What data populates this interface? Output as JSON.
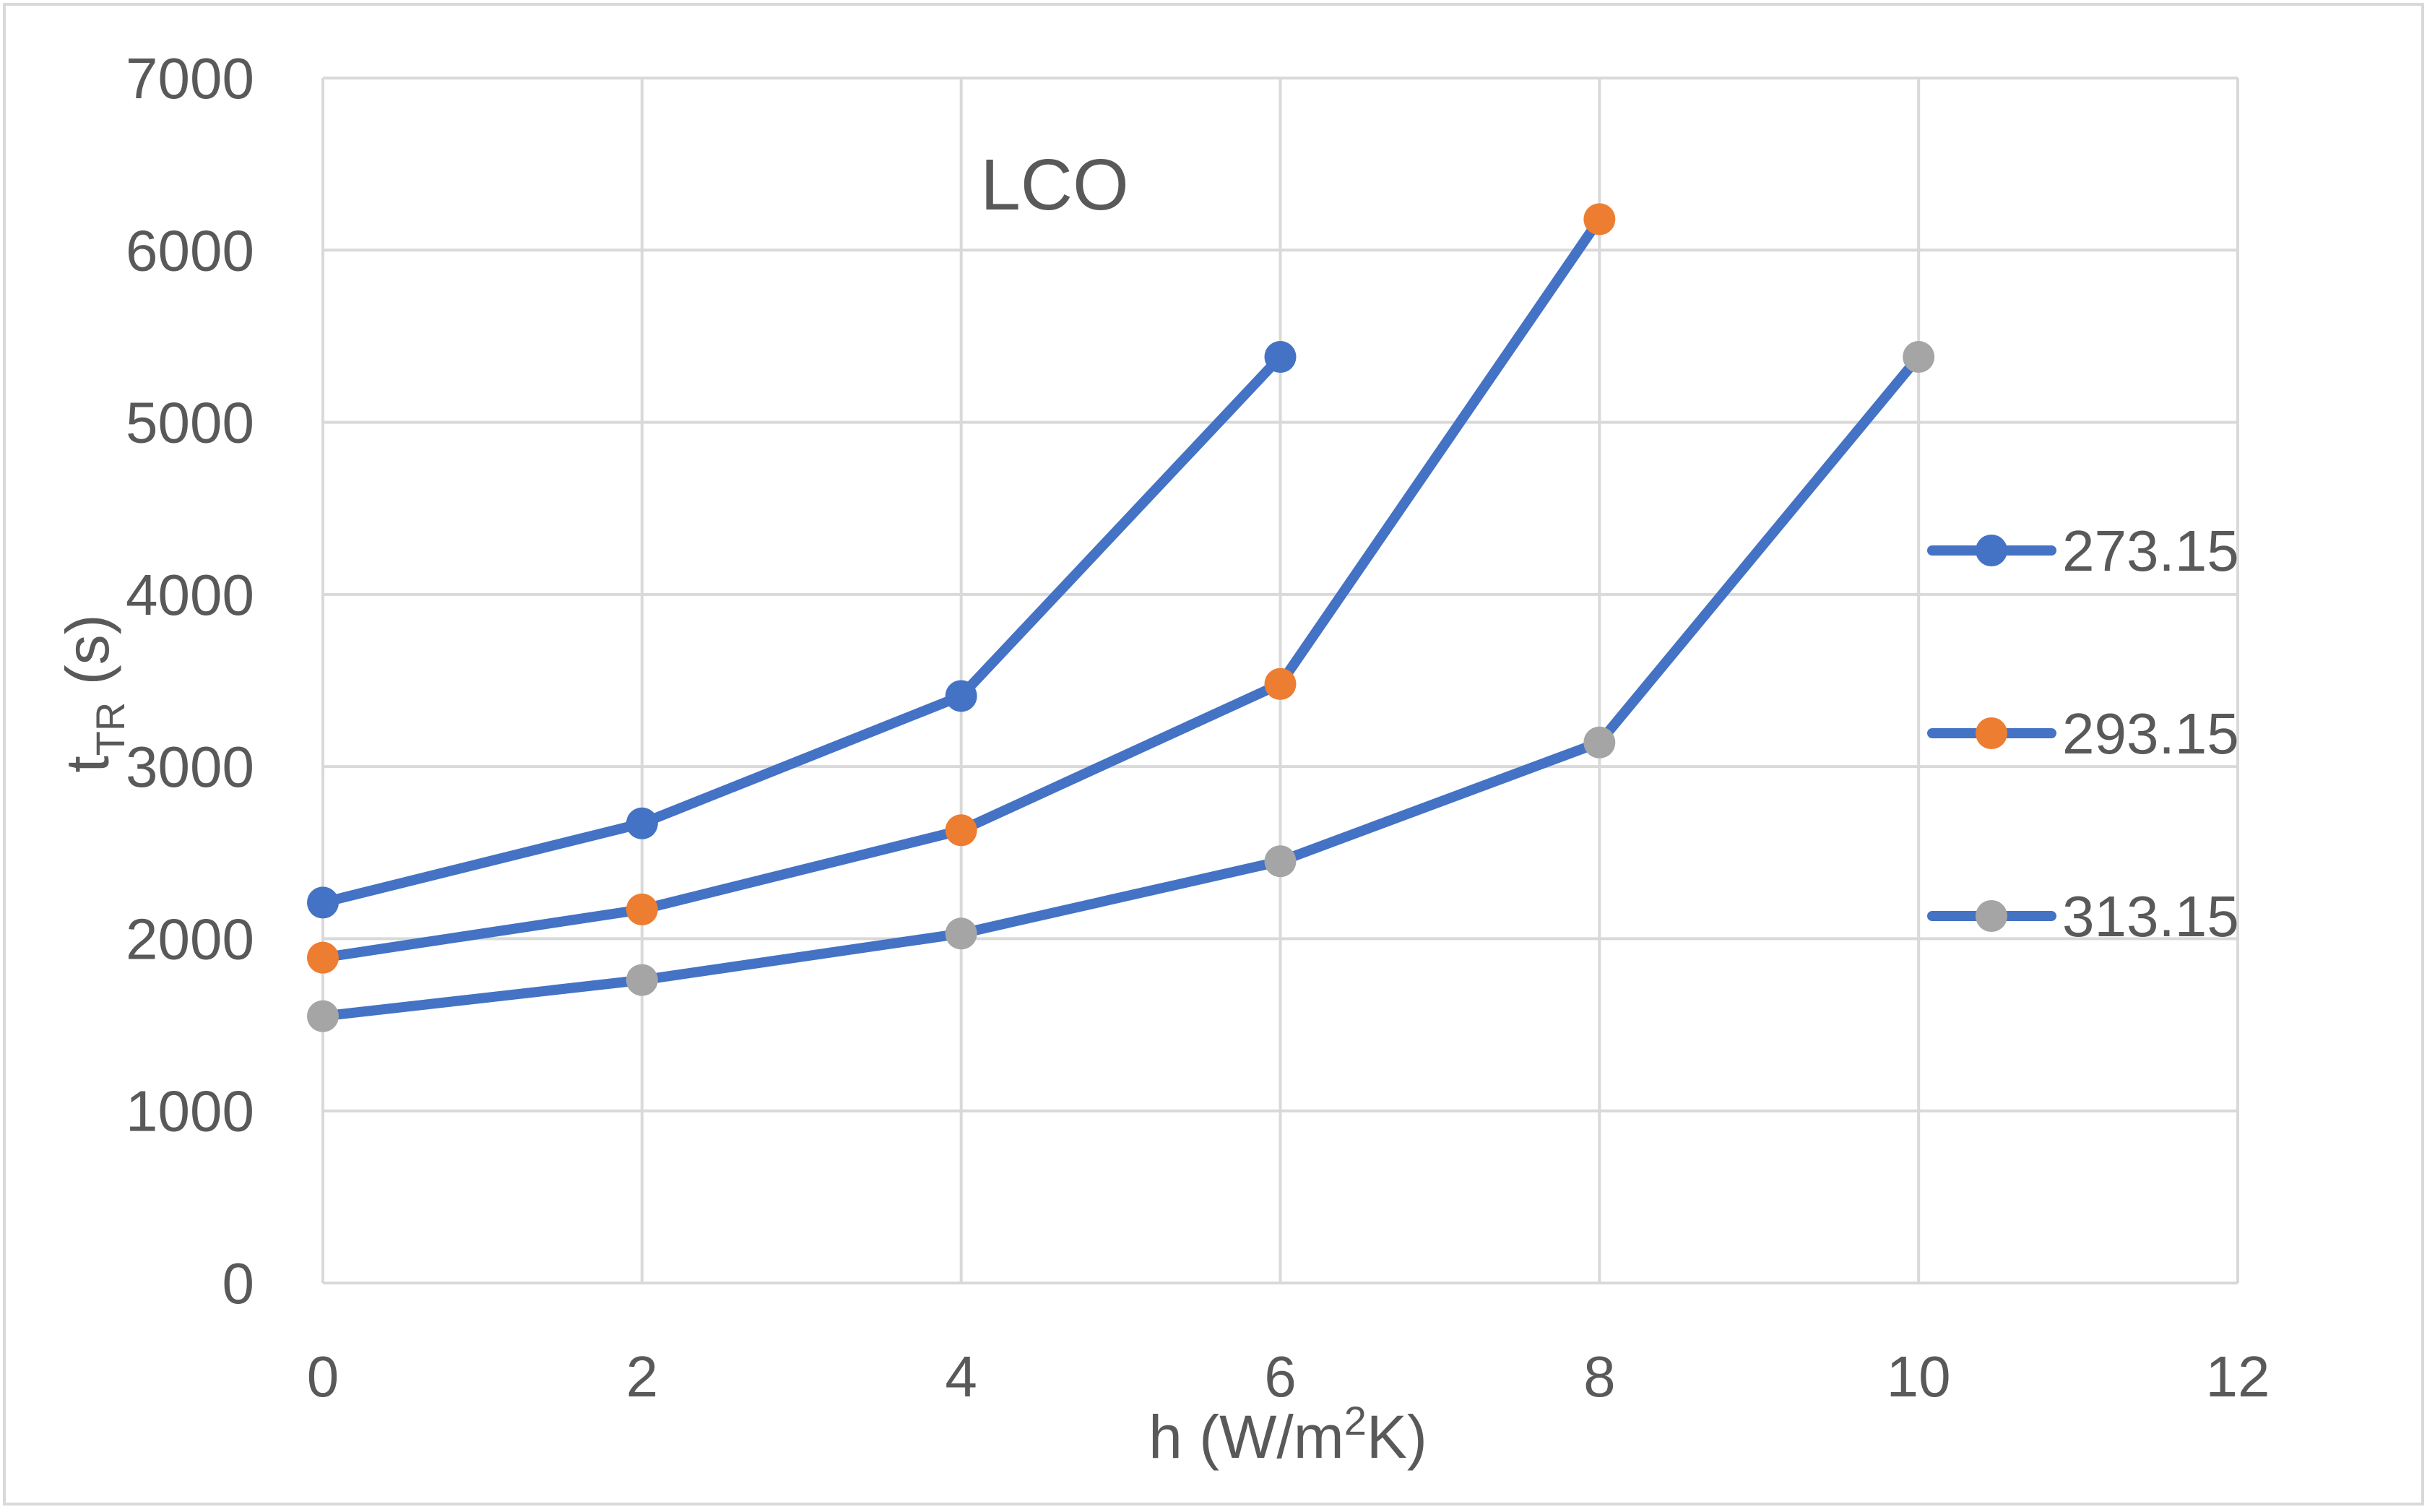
{
  "chart_data": {
    "type": "line",
    "title": "LCO",
    "xlabel_main": "h (W/m",
    "xlabel_sup": "2",
    "xlabel_tail": "K)",
    "ylabel_main": "t",
    "ylabel_sub": "TR",
    "ylabel_tail": " (s)",
    "xlim": [
      0,
      12
    ],
    "ylim": [
      0,
      7000
    ],
    "x_ticks": [
      0,
      2,
      4,
      6,
      8,
      10,
      12
    ],
    "y_ticks": [
      0,
      1000,
      2000,
      3000,
      4000,
      5000,
      6000,
      7000
    ],
    "x_tick_labels": [
      "0",
      "2",
      "4",
      "6",
      "8",
      "10",
      "12"
    ],
    "y_tick_labels": [
      "0",
      "1000",
      "2000",
      "3000",
      "4000",
      "5000",
      "6000",
      "7000"
    ],
    "grid": true,
    "legend_position": "right",
    "line_color": "#4472C4",
    "series": [
      {
        "name": "273.15",
        "marker_color": "#4472C4",
        "x": [
          0,
          2,
          4,
          6
        ],
        "y": [
          2210,
          2670,
          3410,
          5380
        ]
      },
      {
        "name": "293.15",
        "marker_color": "#ED7D31",
        "x": [
          0,
          2,
          4,
          6,
          8
        ],
        "y": [
          1890,
          2170,
          2630,
          3480,
          6180
        ]
      },
      {
        "name": "313.15",
        "marker_color": "#A5A5A5",
        "x": [
          0,
          2,
          4,
          6,
          8,
          10
        ],
        "y": [
          1550,
          1760,
          2030,
          2450,
          3140,
          5380
        ]
      }
    ]
  }
}
